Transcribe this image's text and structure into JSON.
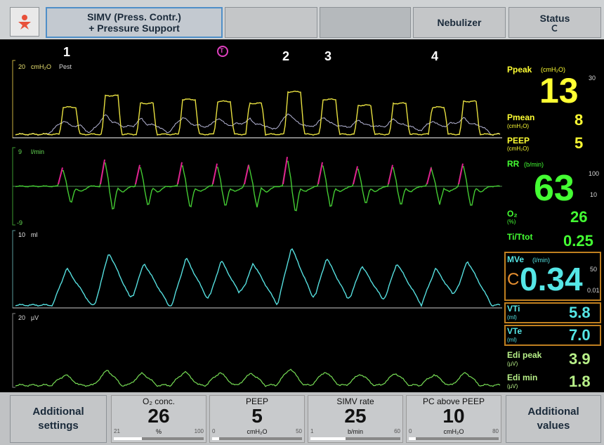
{
  "header": {
    "mode": [
      "SIMV (Press. Contr.)",
      "+ Pressure Support"
    ],
    "nebulizer": "Nebulizer",
    "status": "Status"
  },
  "markers": [
    "1",
    "2",
    "3",
    "4"
  ],
  "trigger_marker": "T",
  "waveforms": [
    {
      "scale_top": "20",
      "unit": "cmH₂O",
      "label": "Pest"
    },
    {
      "scale_top": "9",
      "unit": "l/min",
      "scale_bottom": "-9"
    },
    {
      "scale_top": "10",
      "unit": "ml"
    },
    {
      "scale_top": "20",
      "unit": "µV"
    }
  ],
  "readouts": {
    "ppeak": {
      "label": "Ppeak",
      "unit": "(cmH₂O)",
      "value": "13",
      "upper": "30"
    },
    "pmean": {
      "label": "Pmean",
      "unit": "(cmH₂O)",
      "value": "8"
    },
    "peep": {
      "label": "PEEP",
      "unit": "(cmH₂O)",
      "value": "5"
    },
    "rr": {
      "label": "RR",
      "unit": "(b/min)",
      "value": "63",
      "upper": "100",
      "lower": "10"
    },
    "o2": {
      "label": "O₂",
      "unit": "(%)",
      "value": "26"
    },
    "ti_ttot": {
      "label": "Ti/Ttot",
      "value": "0.25"
    },
    "mve": {
      "label": "MVe",
      "unit": "(l/min)",
      "value": "0.34",
      "upper": "50",
      "lower": "0.01",
      "flag": "C"
    },
    "vti": {
      "label": "VTi",
      "unit": "(ml)",
      "value": "5.8"
    },
    "vte": {
      "label": "VTe",
      "unit": "(ml)",
      "value": "7.0"
    },
    "edi_peak": {
      "label": "Edi peak",
      "unit": "(µV)",
      "value": "3.9"
    },
    "edi_min": {
      "label": "Edi min",
      "unit": "(µV)",
      "value": "1.8"
    }
  },
  "footer": {
    "left": [
      "Additional",
      "settings"
    ],
    "settings": [
      {
        "label": "O₂ conc.",
        "value": "26",
        "unit": "%",
        "min": "21",
        "max": "100"
      },
      {
        "label": "PEEP",
        "value": "5",
        "unit": "cmH₂O",
        "min": "0",
        "max": "50"
      },
      {
        "label": "SIMV rate",
        "value": "25",
        "unit": "b/min",
        "min": "1",
        "max": "60"
      },
      {
        "label": "PC above PEEP",
        "value": "10",
        "unit": "cmH₂O",
        "min": "0",
        "max": "80"
      }
    ],
    "right": [
      "Additional",
      "values"
    ]
  }
}
